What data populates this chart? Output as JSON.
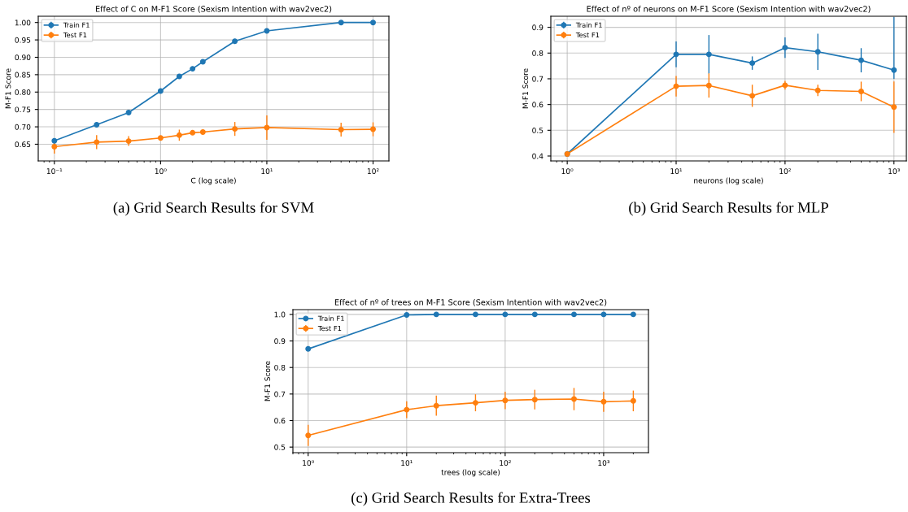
{
  "chart_data": [
    {
      "type": "line",
      "title": "Effect of C on M-F1 Score (Sexism Intention with wav2vec2)",
      "xlabel": "C (log scale)",
      "ylabel": "M-F1 Score",
      "log": "x",
      "grid": true,
      "legend": "top left",
      "marker": "circle",
      "line_style": "solid",
      "x": [
        0.1,
        0.25,
        0.5,
        1,
        1.5,
        2,
        2.5,
        5,
        10,
        50,
        100
      ],
      "xlim": [
        0.0705,
        141
      ],
      "xticks": [
        {
          "value": 0.1,
          "label": "10⁻¹"
        },
        {
          "value": 1,
          "label": "10⁰"
        },
        {
          "value": 10,
          "label": "10¹"
        },
        {
          "value": 100,
          "label": "10²"
        }
      ],
      "ylim": [
        0.602,
        1.018
      ],
      "yticks": [
        {
          "value": 0.65,
          "label": "0.65"
        },
        {
          "value": 0.7,
          "label": "0.70"
        },
        {
          "value": 0.75,
          "label": "0.75"
        },
        {
          "value": 0.8,
          "label": "0.80"
        },
        {
          "value": 0.85,
          "label": "0.85"
        },
        {
          "value": 0.9,
          "label": "0.90"
        },
        {
          "value": 0.95,
          "label": "0.95"
        },
        {
          "value": 1.0,
          "label": "1.00"
        }
      ],
      "series": [
        {
          "name": "Train F1",
          "color": "#1f77b4",
          "values": [
            0.66,
            0.706,
            0.741,
            0.803,
            0.845,
            0.867,
            0.887,
            0.946,
            0.976,
            1.0,
            1.0
          ],
          "errors": [
            null,
            null,
            null,
            null,
            0.004,
            0.005,
            0.004,
            0.003,
            null,
            null,
            null
          ]
        },
        {
          "name": "Test F1",
          "color": "#ff7f0e",
          "values": [
            0.643,
            0.656,
            0.659,
            0.668,
            0.676,
            0.683,
            0.685,
            0.694,
            0.698,
            0.692,
            0.693
          ],
          "errors": [
            0.02,
            0.02,
            0.014,
            0.005,
            0.016,
            0.004,
            0.003,
            0.02,
            0.035,
            0.02,
            0.02
          ]
        }
      ],
      "annotations": [
        "(a) Grid Search Results for SVM"
      ]
    },
    {
      "type": "line",
      "title": "Effect of nº of neurons on M-F1 Score (Sexism Intention with wav2vec2)",
      "xlabel": "neurons (log scale)",
      "ylabel": "M-F1 Score",
      "log": "x",
      "grid": true,
      "legend": "top left",
      "marker": "circle",
      "line_style": "solid",
      "x": [
        1,
        10,
        20,
        50,
        100,
        200,
        500,
        1000
      ],
      "xlim": [
        0.707,
        1300
      ],
      "xticks": [
        {
          "value": 1,
          "label": "10⁰"
        },
        {
          "value": 10,
          "label": "10¹"
        },
        {
          "value": 100,
          "label": "10²"
        },
        {
          "value": 1000,
          "label": "10³"
        }
      ],
      "ylim": [
        0.381,
        0.943
      ],
      "yticks": [
        0.4,
        0.5,
        0.6,
        0.7,
        0.8,
        0.9
      ],
      "series": [
        {
          "name": "Train F1",
          "color": "#1f77b4",
          "values": [
            0.408,
            0.795,
            0.795,
            0.761,
            0.821,
            0.805,
            0.772,
            0.734
          ],
          "errors": [
            null,
            0.05,
            0.075,
            0.026,
            0.04,
            0.07,
            0.047,
            [
              0.7,
              0.94
            ]
          ]
        },
        {
          "name": "Test F1",
          "color": "#ff7f0e",
          "values": [
            0.408,
            0.671,
            0.674,
            0.634,
            0.675,
            0.655,
            0.651,
            0.59
          ],
          "errors": [
            null,
            0.04,
            0.047,
            0.043,
            0.017,
            0.022,
            0.038,
            0.1
          ]
        }
      ],
      "annotations": [
        "(b) Grid Search Results for MLP"
      ]
    },
    {
      "type": "line",
      "title": "Effect of nº of trees on M-F1 Score (Sexism Intention with wav2vec2)",
      "xlabel": "trees (log scale)",
      "ylabel": "M-F1 Score",
      "log": "x",
      "grid": true,
      "legend": "top left",
      "marker": "circle",
      "line_style": "solid",
      "x": [
        1,
        10,
        20,
        50,
        100,
        200,
        500,
        1000,
        2000
      ],
      "xlim": [
        0.7,
        2850
      ],
      "xticks": [
        {
          "value": 1,
          "label": "10⁰"
        },
        {
          "value": 10,
          "label": "10¹"
        },
        {
          "value": 100,
          "label": "10²"
        },
        {
          "value": 1000,
          "label": "10³"
        }
      ],
      "ylim": [
        0.479,
        1.018
      ],
      "yticks": [
        0.5,
        0.6,
        0.7,
        0.8,
        0.9,
        {
          "value": 1.0,
          "label": "1.0"
        }
      ],
      "series": [
        {
          "name": "Train F1",
          "color": "#1f77b4",
          "values": [
            0.87,
            0.998,
            1.0,
            1.0,
            1.0,
            1.0,
            1.0,
            1.0,
            1.0
          ]
        },
        {
          "name": "Test F1",
          "color": "#ff7f0e",
          "values": [
            0.544,
            0.641,
            0.656,
            0.667,
            0.676,
            0.679,
            0.681,
            0.671,
            0.674
          ],
          "errors": [
            0.04,
            0.032,
            0.038,
            0.032,
            0.033,
            0.037,
            0.042,
            0.038,
            0.039
          ]
        }
      ],
      "annotations": [
        "(c) Grid Search Results for Extra-Trees"
      ]
    }
  ]
}
